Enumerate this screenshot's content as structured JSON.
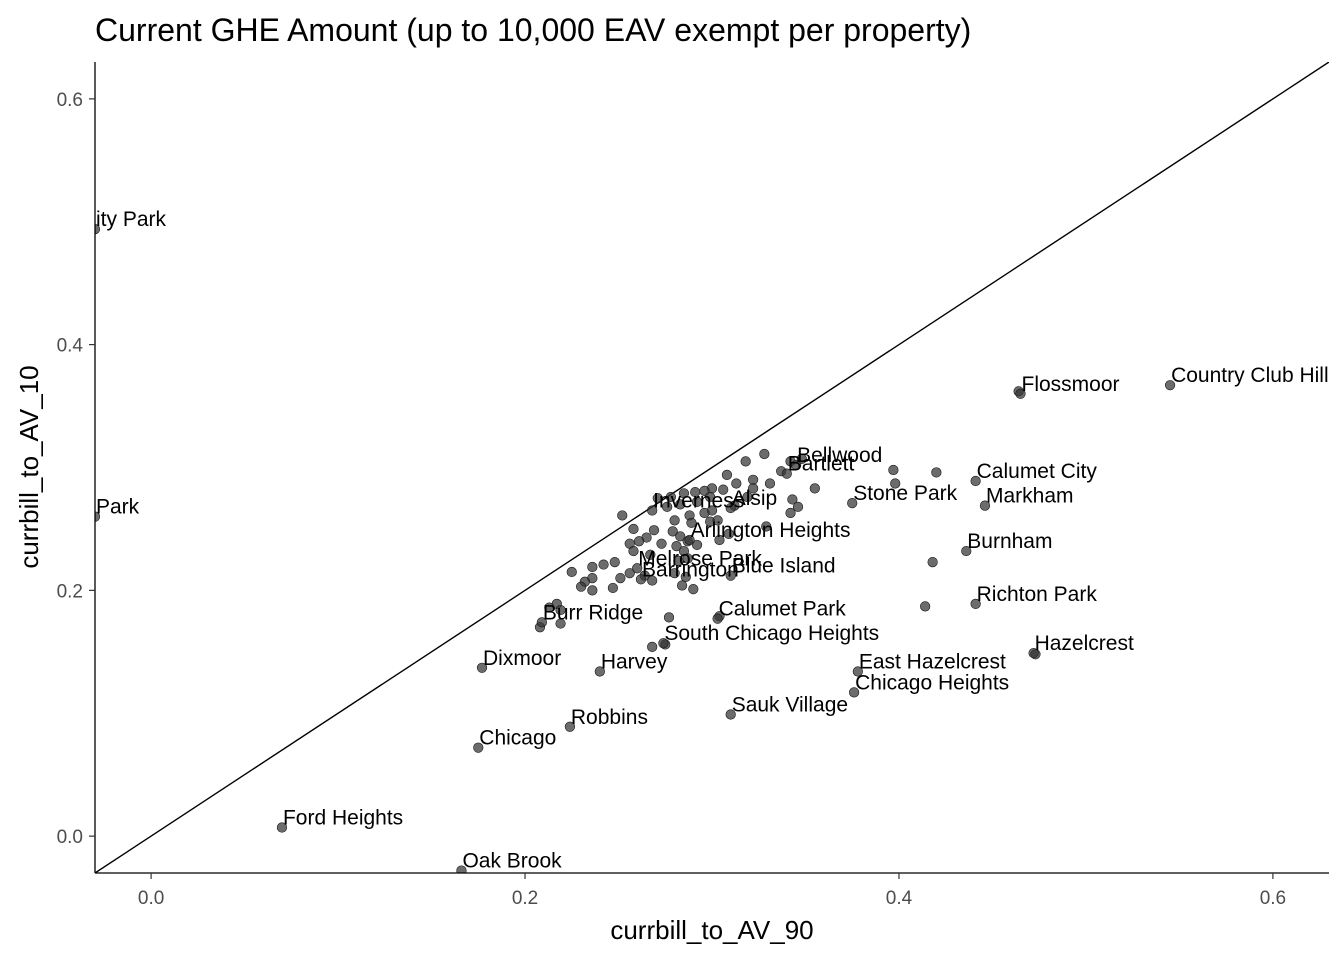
{
  "chart_data": {
    "type": "scatter",
    "title": "Current GHE Amount (up to 10,000 EAV exempt per property)",
    "xlabel": "currbill_to_AV_90",
    "ylabel": "currbill_to_AV_10",
    "xlim": [
      -0.03,
      0.63
    ],
    "ylim": [
      -0.03,
      0.63
    ],
    "x_ticks": [
      0.0,
      0.2,
      0.4,
      0.6
    ],
    "y_ticks": [
      0.0,
      0.2,
      0.4,
      0.6
    ],
    "x_tick_labels": [
      "0.0",
      "0.2",
      "0.4",
      "0.6"
    ],
    "y_tick_labels": [
      "0.0",
      "0.2",
      "0.4",
      "0.6"
    ],
    "reference_line": "y = x",
    "grid": false,
    "point_color": "#333333",
    "labeled_points": [
      {
        "label": "ity Park",
        "x": -0.03,
        "y": 0.494
      },
      {
        "label": "Park",
        "x": -0.03,
        "y": 0.26
      },
      {
        "label": "Country Club Hills",
        "x": 0.545,
        "y": 0.367
      },
      {
        "label": "Flossmoor",
        "x": 0.465,
        "y": 0.36
      },
      {
        "label": "Bellwood",
        "x": 0.345,
        "y": 0.302
      },
      {
        "label": "Bartlett",
        "x": 0.34,
        "y": 0.295
      },
      {
        "label": "Calumet City",
        "x": 0.441,
        "y": 0.289
      },
      {
        "label": "Markham",
        "x": 0.446,
        "y": 0.269
      },
      {
        "label": "Stone Park",
        "x": 0.375,
        "y": 0.271
      },
      {
        "label": "Alsip",
        "x": 0.31,
        "y": 0.267
      },
      {
        "label": "Inverness",
        "x": 0.268,
        "y": 0.265
      },
      {
        "label": "Burnham",
        "x": 0.436,
        "y": 0.232
      },
      {
        "label": "Arlington Heights",
        "x": 0.288,
        "y": 0.241
      },
      {
        "label": "Blue Island",
        "x": 0.31,
        "y": 0.212
      },
      {
        "label": "Melrose Park",
        "x": 0.26,
        "y": 0.218
      },
      {
        "label": "Barrington",
        "x": 0.262,
        "y": 0.209
      },
      {
        "label": "Richton Park",
        "x": 0.441,
        "y": 0.189
      },
      {
        "label": "Calumet Park",
        "x": 0.303,
        "y": 0.177
      },
      {
        "label": "Burr Ridge",
        "x": 0.209,
        "y": 0.174
      },
      {
        "label": "South Chicago Heights",
        "x": 0.274,
        "y": 0.157
      },
      {
        "label": "Hazelcrest",
        "x": 0.472,
        "y": 0.149
      },
      {
        "label": "Dixmoor",
        "x": 0.177,
        "y": 0.137
      },
      {
        "label": "Harvey",
        "x": 0.24,
        "y": 0.134
      },
      {
        "label": "East Hazelcrest",
        "x": 0.378,
        "y": 0.134
      },
      {
        "label": "Chicago Heights",
        "x": 0.376,
        "y": 0.117
      },
      {
        "label": "Sauk Village",
        "x": 0.31,
        "y": 0.099
      },
      {
        "label": "Robbins",
        "x": 0.224,
        "y": 0.089
      },
      {
        "label": "Chicago",
        "x": 0.175,
        "y": 0.072
      },
      {
        "label": "Ford Heights",
        "x": 0.07,
        "y": 0.007
      },
      {
        "label": "Oak Brook",
        "x": 0.166,
        "y": -0.028
      }
    ],
    "other_points": [
      {
        "x": 0.464,
        "y": 0.362
      },
      {
        "x": 0.473,
        "y": 0.148
      },
      {
        "x": 0.342,
        "y": 0.305
      },
      {
        "x": 0.348,
        "y": 0.307
      },
      {
        "x": 0.328,
        "y": 0.311
      },
      {
        "x": 0.318,
        "y": 0.305
      },
      {
        "x": 0.337,
        "y": 0.297
      },
      {
        "x": 0.397,
        "y": 0.298
      },
      {
        "x": 0.398,
        "y": 0.287
      },
      {
        "x": 0.42,
        "y": 0.296
      },
      {
        "x": 0.355,
        "y": 0.283
      },
      {
        "x": 0.331,
        "y": 0.287
      },
      {
        "x": 0.322,
        "y": 0.29
      },
      {
        "x": 0.322,
        "y": 0.283
      },
      {
        "x": 0.308,
        "y": 0.294
      },
      {
        "x": 0.306,
        "y": 0.282
      },
      {
        "x": 0.3,
        "y": 0.283
      },
      {
        "x": 0.296,
        "y": 0.281
      },
      {
        "x": 0.291,
        "y": 0.28
      },
      {
        "x": 0.285,
        "y": 0.279
      },
      {
        "x": 0.278,
        "y": 0.276
      },
      {
        "x": 0.271,
        "y": 0.275
      },
      {
        "x": 0.313,
        "y": 0.287
      },
      {
        "x": 0.299,
        "y": 0.276
      },
      {
        "x": 0.292,
        "y": 0.272
      },
      {
        "x": 0.283,
        "y": 0.27
      },
      {
        "x": 0.276,
        "y": 0.268
      },
      {
        "x": 0.343,
        "y": 0.274
      },
      {
        "x": 0.346,
        "y": 0.268
      },
      {
        "x": 0.342,
        "y": 0.263
      },
      {
        "x": 0.319,
        "y": 0.276
      },
      {
        "x": 0.312,
        "y": 0.269
      },
      {
        "x": 0.3,
        "y": 0.265
      },
      {
        "x": 0.296,
        "y": 0.263
      },
      {
        "x": 0.288,
        "y": 0.261
      },
      {
        "x": 0.28,
        "y": 0.257
      },
      {
        "x": 0.289,
        "y": 0.255
      },
      {
        "x": 0.299,
        "y": 0.256
      },
      {
        "x": 0.303,
        "y": 0.257
      },
      {
        "x": 0.252,
        "y": 0.261
      },
      {
        "x": 0.258,
        "y": 0.25
      },
      {
        "x": 0.269,
        "y": 0.249
      },
      {
        "x": 0.279,
        "y": 0.248
      },
      {
        "x": 0.283,
        "y": 0.244
      },
      {
        "x": 0.287,
        "y": 0.24
      },
      {
        "x": 0.292,
        "y": 0.237
      },
      {
        "x": 0.265,
        "y": 0.243
      },
      {
        "x": 0.261,
        "y": 0.24
      },
      {
        "x": 0.256,
        "y": 0.238
      },
      {
        "x": 0.273,
        "y": 0.238
      },
      {
        "x": 0.281,
        "y": 0.236
      },
      {
        "x": 0.285,
        "y": 0.232
      },
      {
        "x": 0.329,
        "y": 0.252
      },
      {
        "x": 0.309,
        "y": 0.246
      },
      {
        "x": 0.304,
        "y": 0.241
      },
      {
        "x": 0.267,
        "y": 0.229
      },
      {
        "x": 0.258,
        "y": 0.232
      },
      {
        "x": 0.282,
        "y": 0.224
      },
      {
        "x": 0.287,
        "y": 0.226
      },
      {
        "x": 0.248,
        "y": 0.223
      },
      {
        "x": 0.242,
        "y": 0.221
      },
      {
        "x": 0.236,
        "y": 0.219
      },
      {
        "x": 0.225,
        "y": 0.215
      },
      {
        "x": 0.236,
        "y": 0.21
      },
      {
        "x": 0.232,
        "y": 0.207
      },
      {
        "x": 0.23,
        "y": 0.203
      },
      {
        "x": 0.236,
        "y": 0.2
      },
      {
        "x": 0.247,
        "y": 0.202
      },
      {
        "x": 0.251,
        "y": 0.21
      },
      {
        "x": 0.256,
        "y": 0.214
      },
      {
        "x": 0.264,
        "y": 0.212
      },
      {
        "x": 0.268,
        "y": 0.208
      },
      {
        "x": 0.28,
        "y": 0.214
      },
      {
        "x": 0.286,
        "y": 0.211
      },
      {
        "x": 0.29,
        "y": 0.201
      },
      {
        "x": 0.284,
        "y": 0.204
      },
      {
        "x": 0.418,
        "y": 0.223
      },
      {
        "x": 0.414,
        "y": 0.187
      },
      {
        "x": 0.217,
        "y": 0.189
      },
      {
        "x": 0.213,
        "y": 0.186
      },
      {
        "x": 0.219,
        "y": 0.184
      },
      {
        "x": 0.208,
        "y": 0.17
      },
      {
        "x": 0.219,
        "y": 0.173
      },
      {
        "x": 0.277,
        "y": 0.178
      },
      {
        "x": 0.268,
        "y": 0.154
      },
      {
        "x": 0.275,
        "y": 0.156
      },
      {
        "x": 0.304,
        "y": 0.179
      }
    ]
  }
}
